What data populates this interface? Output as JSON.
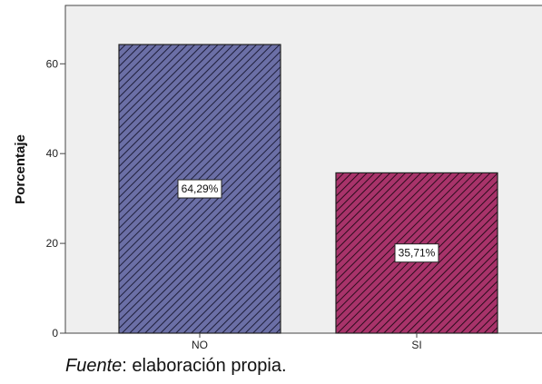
{
  "chart_data": {
    "type": "bar",
    "title": "",
    "xlabel": "",
    "ylabel": "Porcentaje",
    "categories": [
      "NO",
      "SI"
    ],
    "values": [
      64.29,
      35.71
    ],
    "data_labels": [
      "64,29%",
      "35,71%"
    ],
    "ylim": [
      0,
      73
    ],
    "yticks": [
      0,
      20,
      40,
      60
    ],
    "grid": false,
    "colors": [
      "#6b6fa6",
      "#a8336a"
    ],
    "plot_background": "#efefef"
  },
  "source": {
    "label": "Fuente",
    "text": ": elaboración propia."
  }
}
